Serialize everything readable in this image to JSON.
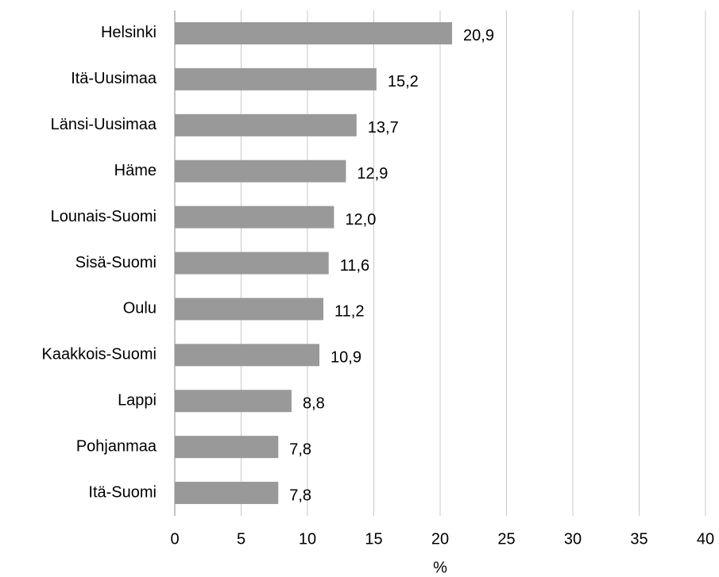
{
  "chart_data": {
    "type": "bar",
    "orientation": "horizontal",
    "x_label": "%",
    "categories": [
      "Helsinki",
      "Itä-Uusimaa",
      "Länsi-Uusimaa",
      "Häme",
      "Lounais-Suomi",
      "Sisä-Suomi",
      "Oulu",
      "Kaakkois-Suomi",
      "Lappi",
      "Pohjanmaa",
      "Itä-Suomi"
    ],
    "values": [
      20.9,
      15.2,
      13.7,
      12.9,
      12.0,
      11.6,
      11.2,
      10.9,
      8.8,
      7.8,
      7.8
    ],
    "value_labels": [
      "20,9",
      "15,2",
      "13,7",
      "12,9",
      "12,0",
      "11,6",
      "11,2",
      "10,9",
      "8,8",
      "7,8",
      "7,8"
    ],
    "color": "#999999",
    "xlim": [
      0,
      40
    ],
    "xticks": [
      0,
      5,
      10,
      15,
      20,
      25,
      30,
      35,
      40
    ],
    "grid": true
  }
}
